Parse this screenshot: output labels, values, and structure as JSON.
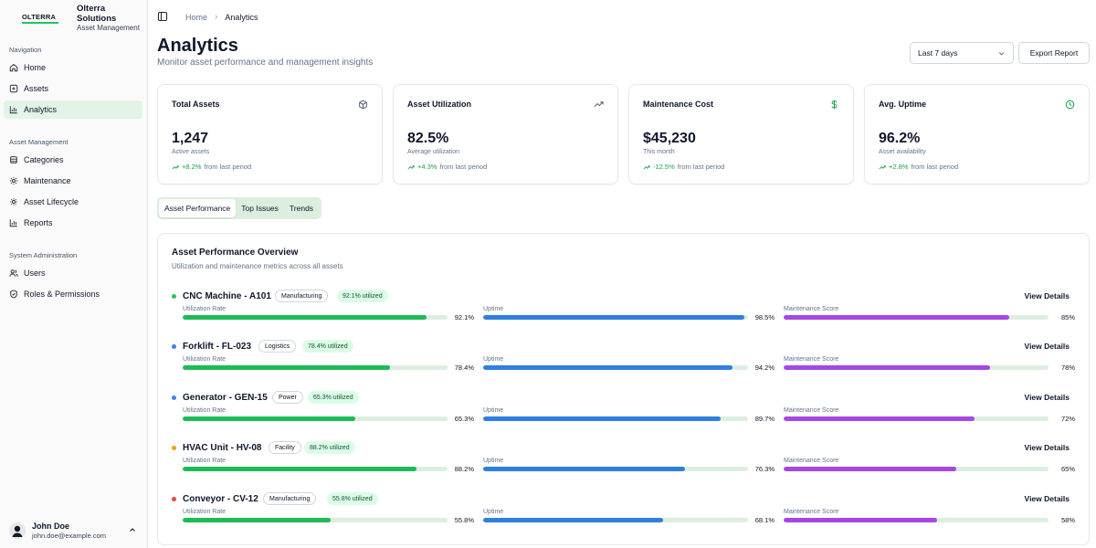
{
  "brand": {
    "logo_text": "OLTERRA",
    "name": "Olterra Solutions",
    "subtitle": "Asset Management"
  },
  "sidebar": {
    "sections": [
      {
        "title": "Navigation",
        "items": [
          {
            "label": "Home",
            "icon": "home-icon"
          },
          {
            "label": "Assets",
            "icon": "box-icon"
          },
          {
            "label": "Analytics",
            "icon": "bar-chart-icon",
            "active": true
          }
        ]
      },
      {
        "title": "Asset Management",
        "items": [
          {
            "label": "Categories",
            "icon": "layers-icon"
          },
          {
            "label": "Maintenance",
            "icon": "gear-icon"
          },
          {
            "label": "Asset Lifecycle",
            "icon": "activity-icon"
          },
          {
            "label": "Reports",
            "icon": "bar-chart-icon"
          }
        ]
      },
      {
        "title": "System Administration",
        "items": [
          {
            "label": "Users",
            "icon": "users-icon"
          },
          {
            "label": "Roles & Permissions",
            "icon": "shield-icon"
          }
        ]
      }
    ]
  },
  "user": {
    "name": "John Doe",
    "email": "john.doe@example.com"
  },
  "breadcrumb": {
    "home": "Home",
    "current": "Analytics"
  },
  "header": {
    "title": "Analytics",
    "subtitle": "Monitor asset performance and management insights",
    "range_value": "Last 7 days",
    "export_label": "Export Report"
  },
  "stats": [
    {
      "title": "Total Assets",
      "icon": "box-icon",
      "value": "1,247",
      "caption": "Active assets",
      "delta": "+8.2%",
      "delta_suffix": "from last period"
    },
    {
      "title": "Asset Utilization",
      "icon": "trending-up-icon",
      "value": "82.5%",
      "caption": "Average utilization",
      "delta": "+4.3%",
      "delta_suffix": "from last period"
    },
    {
      "title": "Maintenance Cost",
      "icon": "dollar-icon",
      "value": "$45,230",
      "caption": "This month",
      "delta": "-12.5%",
      "delta_suffix": "from last period"
    },
    {
      "title": "Avg. Uptime",
      "icon": "clock-icon",
      "value": "96.2%",
      "caption": "Asset availability",
      "delta": "+2.8%",
      "delta_suffix": "from last period"
    }
  ],
  "tabs": [
    {
      "label": "Asset Performance",
      "active": true
    },
    {
      "label": "Top Issues"
    },
    {
      "label": "Trends"
    }
  ],
  "overview": {
    "title": "Asset Performance Overview",
    "subtitle": "Utilization and maintenance metrics across all assets",
    "view_details_label": "View Details",
    "metric_labels": [
      "Utilization Rate",
      "Uptime",
      "Maintenance Score"
    ],
    "metric_colors": [
      "#1dbb57",
      "#2f7fdc",
      "#a647e3"
    ],
    "assets": [
      {
        "name": "CNC Machine - A101",
        "dot_color": "#22c55e",
        "category": "Manufacturing",
        "util_badge": "92.1% utilized",
        "metrics": [
          {
            "value": 92.1,
            "display": "92.1%"
          },
          {
            "value": 98.5,
            "display": "98.5%"
          },
          {
            "value": 85,
            "display": "85%"
          }
        ]
      },
      {
        "name": "Forklift - FL-023",
        "dot_color": "#3b82f6",
        "category": "Logistics",
        "util_badge": "78.4% utilized",
        "metrics": [
          {
            "value": 78.4,
            "display": "78.4%"
          },
          {
            "value": 94.2,
            "display": "94.2%"
          },
          {
            "value": 78,
            "display": "78%"
          }
        ]
      },
      {
        "name": "Generator - GEN-15",
        "dot_color": "#3b82f6",
        "category": "Power",
        "util_badge": "65.3% utilized",
        "metrics": [
          {
            "value": 65.3,
            "display": "65.3%"
          },
          {
            "value": 89.7,
            "display": "89.7%"
          },
          {
            "value": 72,
            "display": "72%"
          }
        ]
      },
      {
        "name": "HVAC Unit - HV-08",
        "dot_color": "#f59e0b",
        "category": "Facility",
        "util_badge": "88.2% utilized",
        "metrics": [
          {
            "value": 88.2,
            "display": "88.2%"
          },
          {
            "value": 76.3,
            "display": "76.3%"
          },
          {
            "value": 65,
            "display": "65%"
          }
        ]
      },
      {
        "name": "Conveyor - CV-12",
        "dot_color": "#ef4444",
        "category": "Manufacturing",
        "util_badge": "55.8% utilized",
        "metrics": [
          {
            "value": 55.8,
            "display": "55.8%"
          },
          {
            "value": 68.1,
            "display": "68.1%"
          },
          {
            "value": 58,
            "display": "58%"
          }
        ]
      }
    ]
  }
}
